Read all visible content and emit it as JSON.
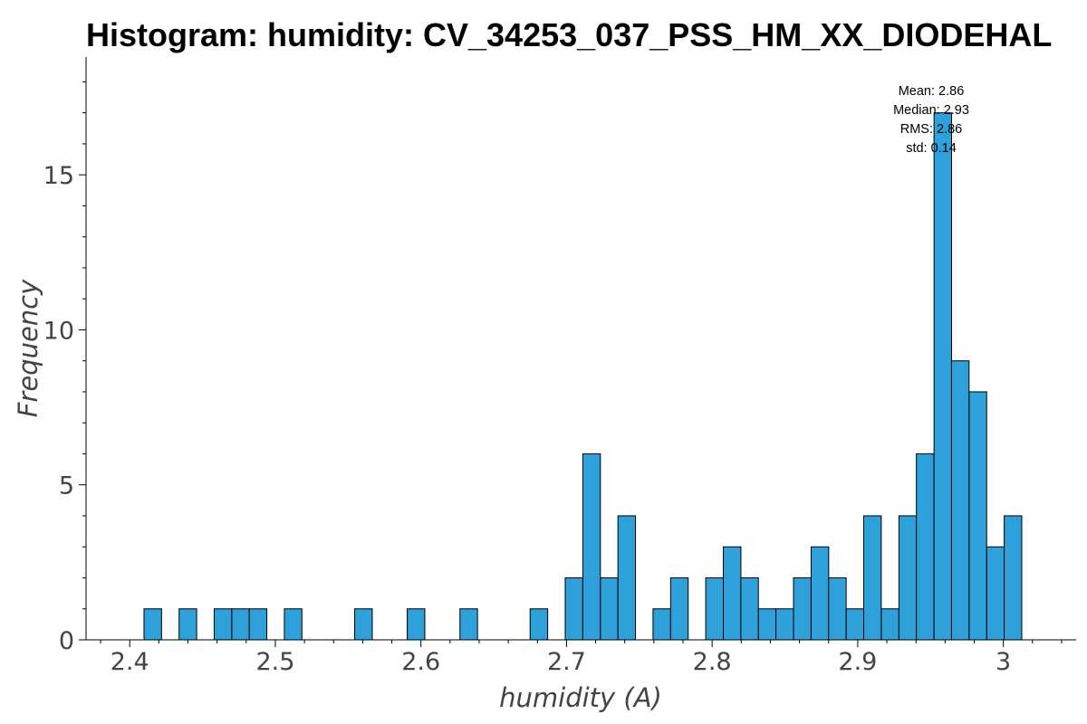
{
  "chart_data": {
    "type": "bar",
    "title": "Histogram: humidity: CV_34253_037_PSS_HM_XX_DIODEHAL",
    "xlabel": "humidity (A)",
    "ylabel": "Frequency",
    "xlim": [
      2.37,
      3.05
    ],
    "ylim": [
      0,
      18.8
    ],
    "bar_color": "#2ea0da",
    "bar_edge_color": "#000000",
    "bin_width": 0.01206,
    "x_ticks": [
      {
        "value": 2.4,
        "label": "2.4"
      },
      {
        "value": 2.5,
        "label": "2.5"
      },
      {
        "value": 2.6,
        "label": "2.6"
      },
      {
        "value": 2.7,
        "label": "2.7"
      },
      {
        "value": 2.8,
        "label": "2.8"
      },
      {
        "value": 2.9,
        "label": "2.9"
      },
      {
        "value": 3.0,
        "label": "3"
      }
    ],
    "y_ticks": [
      {
        "value": 0,
        "label": "0"
      },
      {
        "value": 5,
        "label": "5"
      },
      {
        "value": 10,
        "label": "10"
      },
      {
        "value": 15,
        "label": "15"
      }
    ],
    "bins": [
      {
        "x_start": 2.4098,
        "count": 1
      },
      {
        "x_start": 2.4339,
        "count": 1
      },
      {
        "x_start": 2.458,
        "count": 1
      },
      {
        "x_start": 2.4701,
        "count": 1
      },
      {
        "x_start": 2.4821,
        "count": 1
      },
      {
        "x_start": 2.5062,
        "count": 1
      },
      {
        "x_start": 2.5545,
        "count": 1
      },
      {
        "x_start": 2.5906,
        "count": 1
      },
      {
        "x_start": 2.6268,
        "count": 1
      },
      {
        "x_start": 2.675,
        "count": 1
      },
      {
        "x_start": 2.6991,
        "count": 2
      },
      {
        "x_start": 2.7112,
        "count": 6
      },
      {
        "x_start": 2.7233,
        "count": 2
      },
      {
        "x_start": 2.7353,
        "count": 4
      },
      {
        "x_start": 2.7594,
        "count": 1
      },
      {
        "x_start": 2.7715,
        "count": 2
      },
      {
        "x_start": 2.7956,
        "count": 2
      },
      {
        "x_start": 2.8077,
        "count": 3
      },
      {
        "x_start": 2.8197,
        "count": 2
      },
      {
        "x_start": 2.8318,
        "count": 1
      },
      {
        "x_start": 2.8438,
        "count": 1
      },
      {
        "x_start": 2.8559,
        "count": 2
      },
      {
        "x_start": 2.868,
        "count": 3
      },
      {
        "x_start": 2.88,
        "count": 2
      },
      {
        "x_start": 2.8921,
        "count": 1
      },
      {
        "x_start": 2.9041,
        "count": 4
      },
      {
        "x_start": 2.9162,
        "count": 1
      },
      {
        "x_start": 2.9283,
        "count": 4
      },
      {
        "x_start": 2.9403,
        "count": 6
      },
      {
        "x_start": 2.9524,
        "count": 17
      },
      {
        "x_start": 2.9644,
        "count": 9
      },
      {
        "x_start": 2.9765,
        "count": 8
      },
      {
        "x_start": 2.9886,
        "count": 3
      },
      {
        "x_start": 3.0006,
        "count": 4
      }
    ],
    "stats": {
      "placement": "top-right",
      "lines": [
        "Mean: 2.86",
        "Median: 2.93",
        "RMS: 2.86",
        "std: 0.14"
      ]
    }
  }
}
